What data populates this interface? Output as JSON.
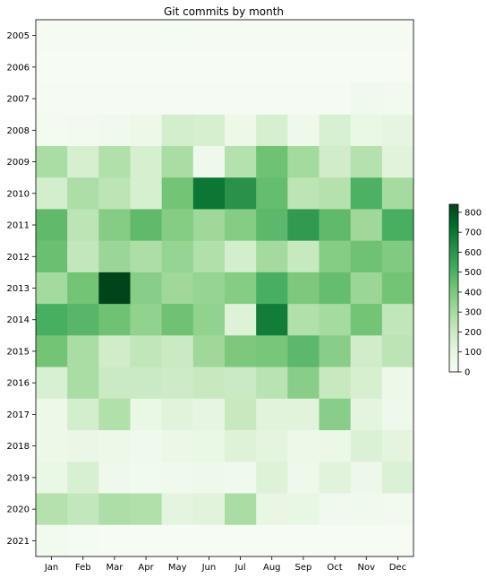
{
  "chart_data": {
    "type": "heatmap",
    "title": "Git commits by month",
    "x_categories": [
      "Jan",
      "Feb",
      "Mar",
      "Apr",
      "May",
      "Jun",
      "Jul",
      "Aug",
      "Sep",
      "Oct",
      "Nov",
      "Dec"
    ],
    "y_categories": [
      "2005",
      "2006",
      "2007",
      "2008",
      "2009",
      "2010",
      "2011",
      "2012",
      "2013",
      "2014",
      "2015",
      "2016",
      "2017",
      "2018",
      "2019",
      "2020",
      "2021"
    ],
    "values": [
      [
        10,
        10,
        10,
        10,
        15,
        10,
        10,
        10,
        10,
        10,
        10,
        10
      ],
      [
        8,
        8,
        8,
        8,
        8,
        8,
        8,
        8,
        8,
        8,
        8,
        8
      ],
      [
        12,
        12,
        12,
        12,
        12,
        12,
        12,
        12,
        12,
        12,
        40,
        30
      ],
      [
        25,
        30,
        40,
        60,
        170,
        160,
        60,
        160,
        50,
        150,
        80,
        100
      ],
      [
        290,
        160,
        270,
        160,
        290,
        50,
        260,
        430,
        310,
        180,
        260,
        120
      ],
      [
        170,
        280,
        240,
        160,
        420,
        700,
        610,
        450,
        240,
        260,
        500,
        300
      ],
      [
        460,
        240,
        380,
        460,
        380,
        320,
        380,
        470,
        580,
        460,
        320,
        510
      ],
      [
        440,
        220,
        330,
        280,
        340,
        270,
        170,
        310,
        210,
        380,
        430,
        390
      ],
      [
        310,
        420,
        840,
        370,
        320,
        340,
        380,
        510,
        400,
        450,
        330,
        420
      ],
      [
        510,
        480,
        430,
        350,
        430,
        350,
        130,
        680,
        270,
        300,
        420,
        230
      ],
      [
        420,
        290,
        180,
        230,
        200,
        320,
        400,
        410,
        470,
        370,
        180,
        240
      ],
      [
        150,
        290,
        200,
        200,
        190,
        210,
        200,
        250,
        370,
        210,
        160,
        60
      ],
      [
        60,
        170,
        270,
        80,
        120,
        100,
        210,
        120,
        120,
        370,
        110,
        50
      ],
      [
        60,
        75,
        60,
        40,
        70,
        80,
        130,
        110,
        60,
        70,
        140,
        110
      ],
      [
        80,
        150,
        50,
        35,
        45,
        50,
        45,
        130,
        50,
        120,
        55,
        140
      ],
      [
        260,
        220,
        280,
        270,
        110,
        120,
        290,
        90,
        85,
        40,
        45,
        30
      ],
      [
        30,
        15,
        8,
        8,
        8,
        8,
        8,
        8,
        8,
        8,
        8,
        8
      ]
    ],
    "colorbar": {
      "vmin": 0,
      "vmax": 840,
      "ticks": [
        0,
        100,
        200,
        300,
        400,
        500,
        600,
        700,
        800
      ]
    },
    "colormap": [
      "#f7fcf5",
      "#e5f5e0",
      "#c7e9c0",
      "#a1d99b",
      "#74c476",
      "#41ab5d",
      "#238b45",
      "#006d2c",
      "#00441b"
    ],
    "legend": "colorbar-right",
    "grid": false
  }
}
